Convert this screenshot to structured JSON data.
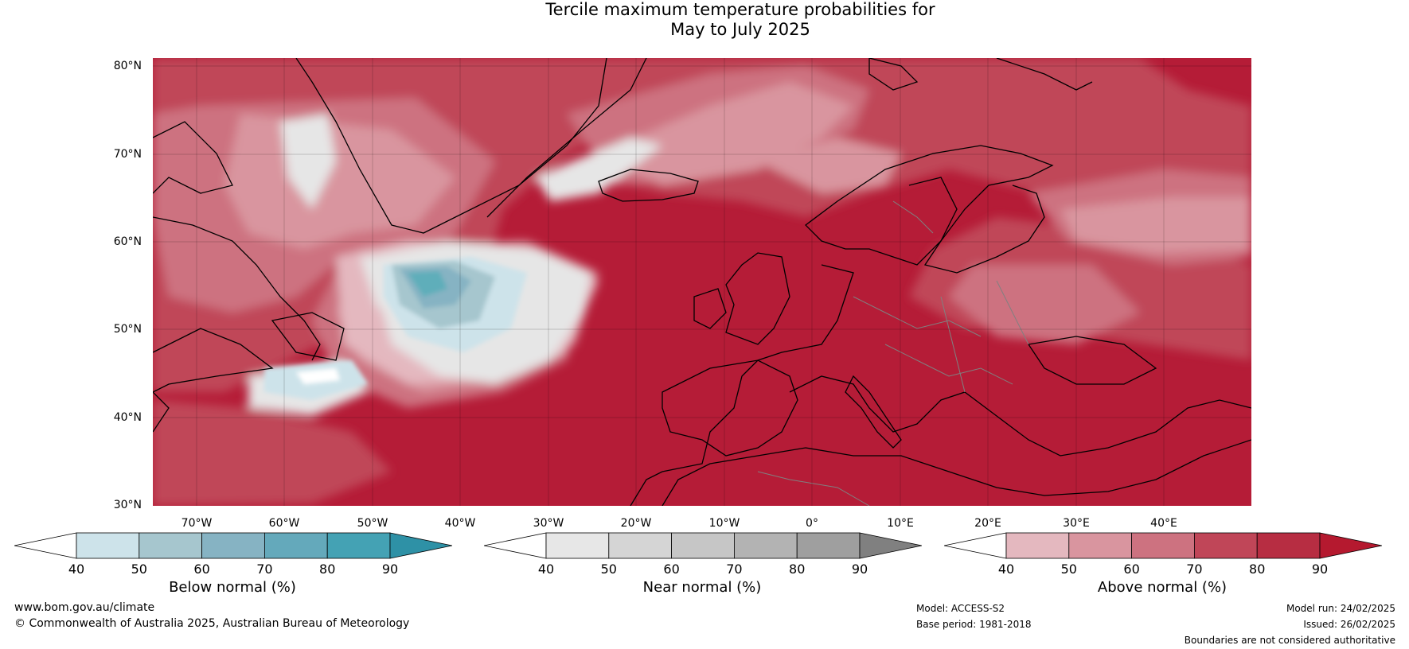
{
  "title": {
    "line1": "Tercile maximum temperature probabilities for",
    "line2": "May to July 2025"
  },
  "map": {
    "lat_labels": [
      "80°N",
      "70°N",
      "60°N",
      "50°N",
      "40°N",
      "30°N"
    ],
    "lon_labels": [
      "70°W",
      "60°W",
      "50°W",
      "40°W",
      "30°W",
      "20°W",
      "10°W",
      "0°",
      "10°E",
      "20°E",
      "30°E",
      "40°E"
    ],
    "colors": {
      "above_90": "#b51c37",
      "above_80": "#c04658",
      "above_70": "#cd7280",
      "above_60": "#d9959f",
      "above_50": "#e4b8bf",
      "below_50": "#cde3ea",
      "below_60": "#a6c6ce",
      "below_70": "#86b3c3",
      "below_80": "#5faeba",
      "near": "#e6e6e6",
      "white": "#ffffff"
    }
  },
  "colorbars": [
    {
      "title": "Below normal (%)",
      "ticks": [
        "40",
        "50",
        "60",
        "70",
        "80",
        "90"
      ],
      "colors": [
        "#ffffff",
        "#cde3ea",
        "#a6c6ce",
        "#86b3c3",
        "#64a9bb",
        "#44a2b4",
        "#2e91a6"
      ]
    },
    {
      "title": "Near normal (%)",
      "ticks": [
        "40",
        "50",
        "60",
        "70",
        "80",
        "90"
      ],
      "colors": [
        "#ffffff",
        "#e7e7e7",
        "#d5d5d5",
        "#c6c6c6",
        "#b3b3b3",
        "#9f9f9f",
        "#808080"
      ]
    },
    {
      "title": "Above normal (%)",
      "ticks": [
        "40",
        "50",
        "60",
        "70",
        "80",
        "90"
      ],
      "colors": [
        "#ffffff",
        "#e4b8bf",
        "#d9959f",
        "#cd7280",
        "#c04658",
        "#b72d42",
        "#b5192f"
      ]
    }
  ],
  "footer": {
    "website": "www.bom.gov.au/climate",
    "copyright": "© Commonwealth of Australia 2025, Australian Bureau of Meteorology",
    "model": "Model: ACCESS-S2",
    "base_period": "Base period: 1981-2018",
    "model_run": "Model run: 24/02/2025",
    "issued": "Issued: 26/02/2025",
    "disclaimer": "Boundaries are not considered authoritative"
  }
}
